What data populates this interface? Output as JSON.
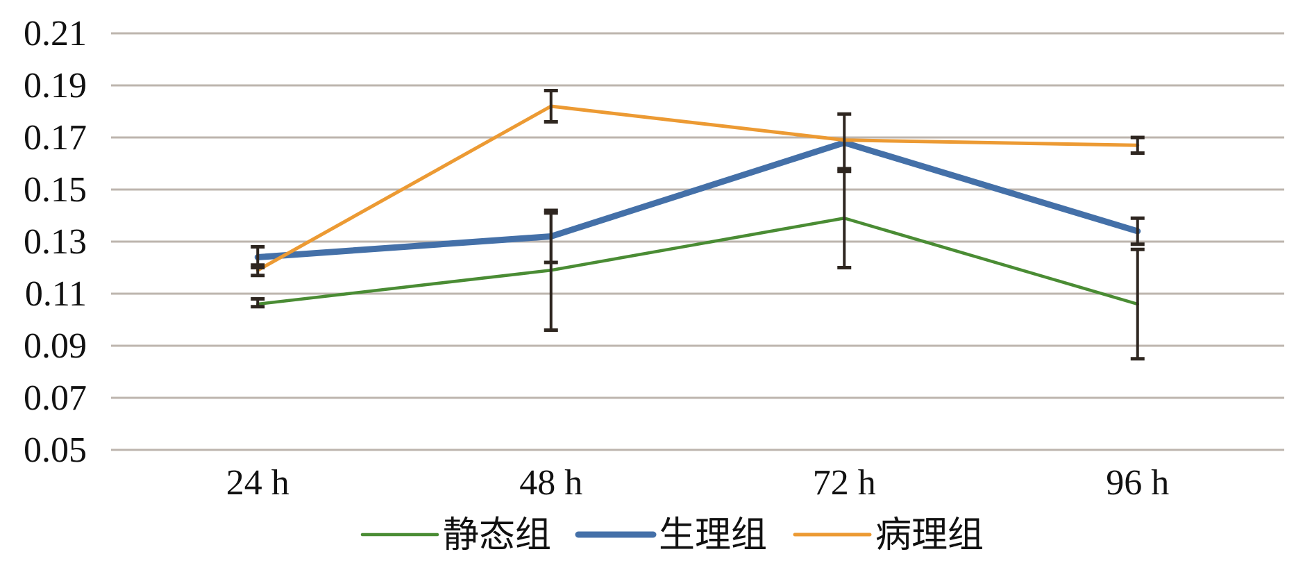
{
  "chart_data": {
    "type": "line",
    "categories": [
      "24 h",
      "48 h",
      "72 h",
      "96 h"
    ],
    "ylim": [
      0.05,
      0.21
    ],
    "yticks": [
      "0.05",
      "0.07",
      "0.09",
      "0.11",
      "0.13",
      "0.15",
      "0.17",
      "0.19",
      "0.21"
    ],
    "grid": true,
    "legend_position": "bottom",
    "series": [
      {
        "name": "静态组",
        "color": "#4a8c34",
        "values": [
          0.106,
          0.119,
          0.139,
          0.106
        ],
        "error_low": [
          0.105,
          0.096,
          0.12,
          0.085
        ],
        "error_high": [
          0.108,
          0.142,
          0.158,
          0.127
        ]
      },
      {
        "name": "生理组",
        "color": "#4470a8",
        "values": [
          0.124,
          0.132,
          0.168,
          0.134
        ],
        "error_low": [
          0.12,
          0.122,
          0.157,
          0.129
        ],
        "error_high": [
          0.128,
          0.141,
          0.179,
          0.139
        ]
      },
      {
        "name": "病理组",
        "color": "#ec9a33",
        "values": [
          0.119,
          0.182,
          0.169,
          0.167
        ],
        "error_low": [
          0.117,
          0.176,
          0.169,
          0.164
        ],
        "error_high": [
          0.121,
          0.188,
          0.169,
          0.17
        ]
      }
    ]
  }
}
